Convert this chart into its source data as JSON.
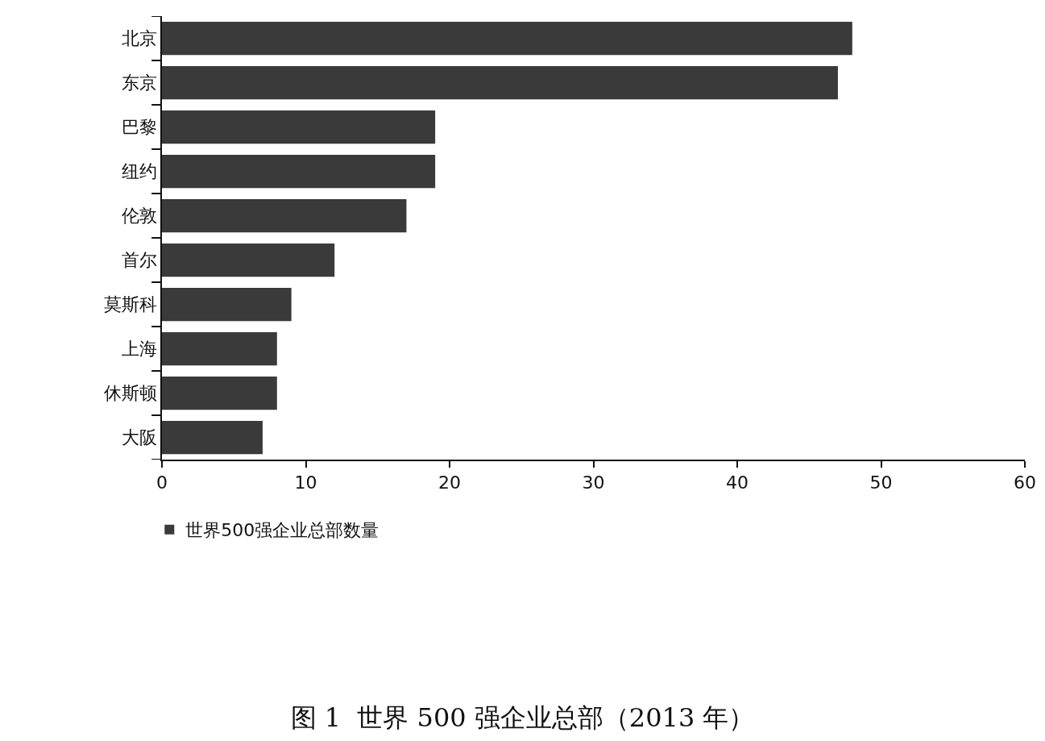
{
  "chart_data": {
    "type": "bar",
    "orientation": "horizontal",
    "title": "图 1  世界 500 强企业总部（2013 年）",
    "categories": [
      "北京",
      "东京",
      "巴黎",
      "纽约",
      "伦敦",
      "首尔",
      "莫斯科",
      "上海",
      "休斯顿",
      "大阪"
    ],
    "series": [
      {
        "name": "世界500强企业总部数量",
        "color": "#3a3a3a",
        "values": [
          48,
          47,
          19,
          19,
          17,
          12,
          9,
          8,
          8,
          7
        ]
      }
    ],
    "xlim": [
      0,
      60
    ],
    "xticks": [
      0,
      10,
      20,
      30,
      40,
      50,
      60
    ],
    "legend": "bottom"
  }
}
